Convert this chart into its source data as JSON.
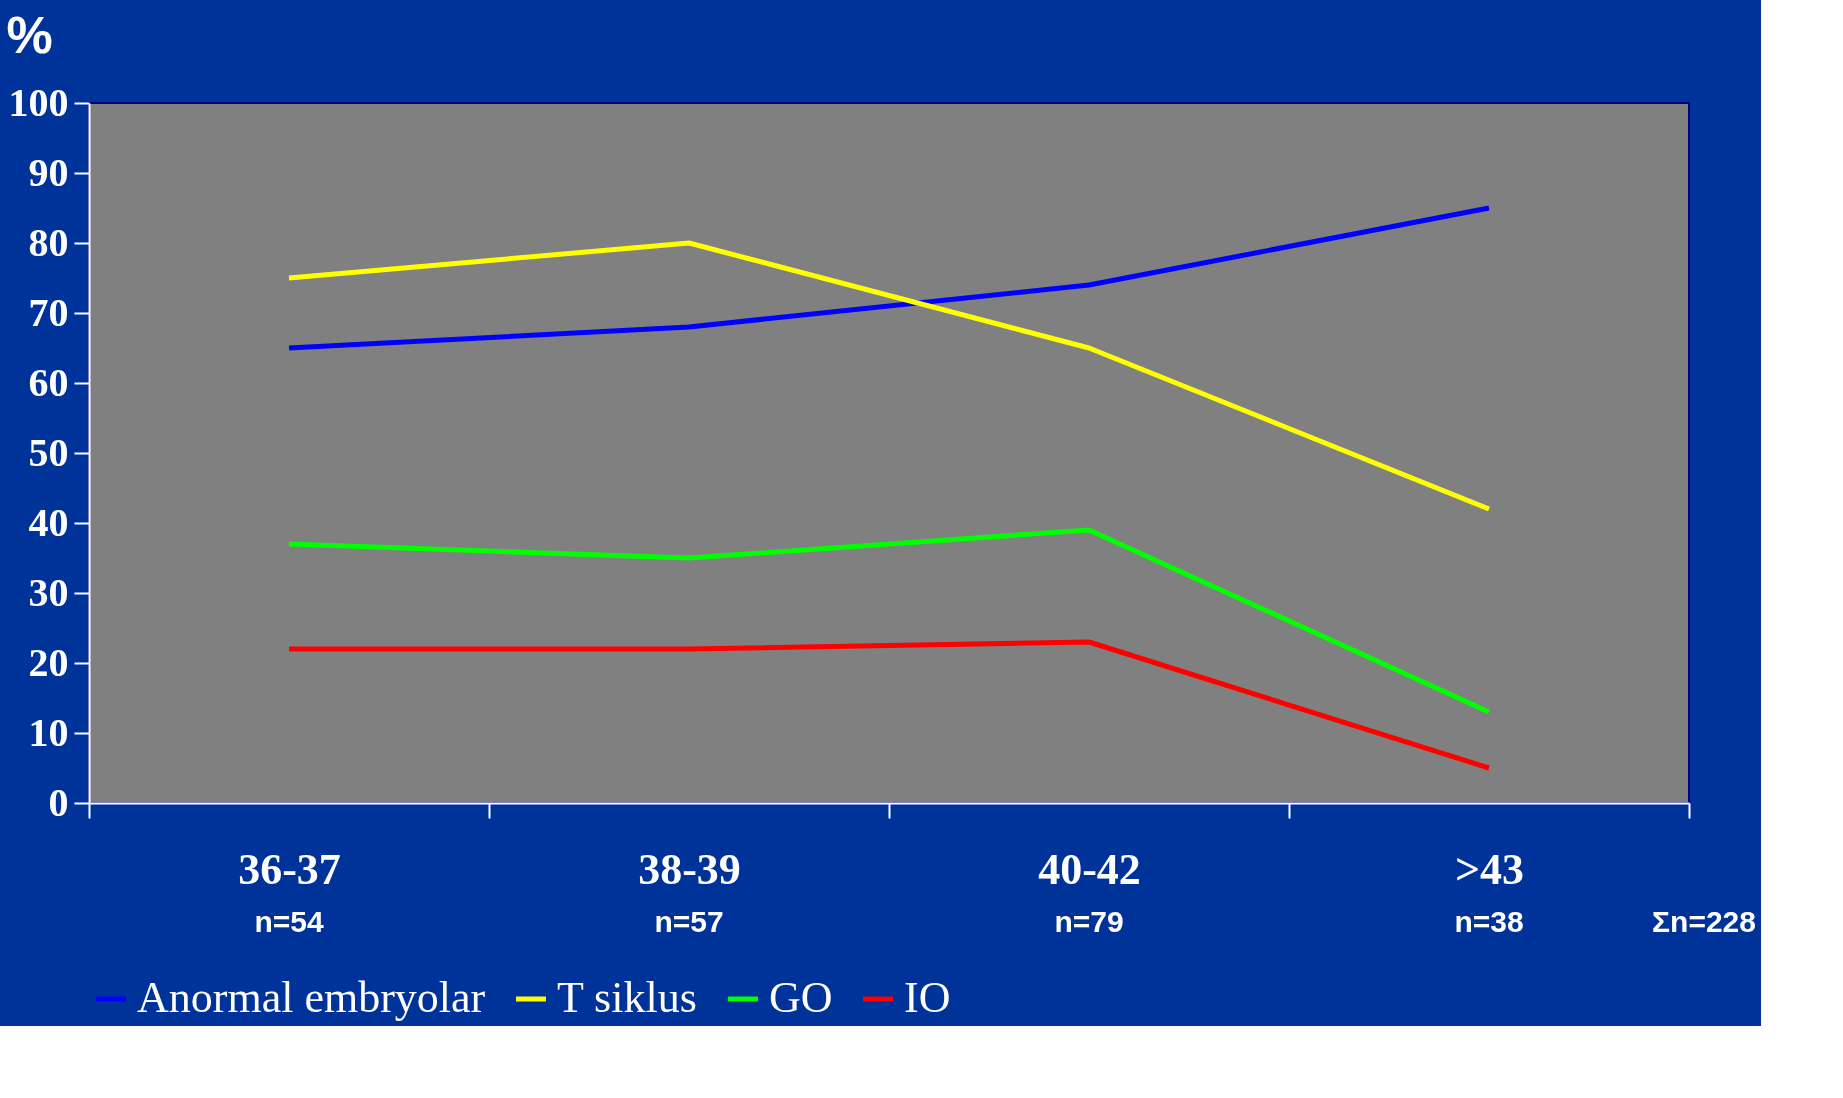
{
  "chart_data": {
    "type": "line",
    "ylabel": "%",
    "categories": [
      "36-37",
      "38-39",
      "40-42",
      ">43"
    ],
    "series": [
      {
        "name": "Anormal embryolar",
        "color": "#0000ff",
        "values": [
          65,
          68,
          74,
          85
        ]
      },
      {
        "name": "T siklus",
        "color": "#ffff00",
        "values": [
          75,
          80,
          65,
          42
        ]
      },
      {
        "name": "GO",
        "color": "#00ff00",
        "values": [
          37,
          35,
          39,
          13
        ]
      },
      {
        "name": "IO",
        "color": "#ff0000",
        "values": [
          22,
          22,
          23,
          5
        ]
      }
    ],
    "ylim": [
      0,
      100
    ],
    "yticks": [
      0,
      10,
      20,
      30,
      40,
      50,
      60,
      70,
      80,
      90,
      100
    ],
    "grid": false,
    "legend": "bottom",
    "marker": "none",
    "line_style": "solid",
    "annotations": [
      "n=54",
      "n=57",
      "n=79",
      "n=38",
      "Σn=228"
    ]
  }
}
